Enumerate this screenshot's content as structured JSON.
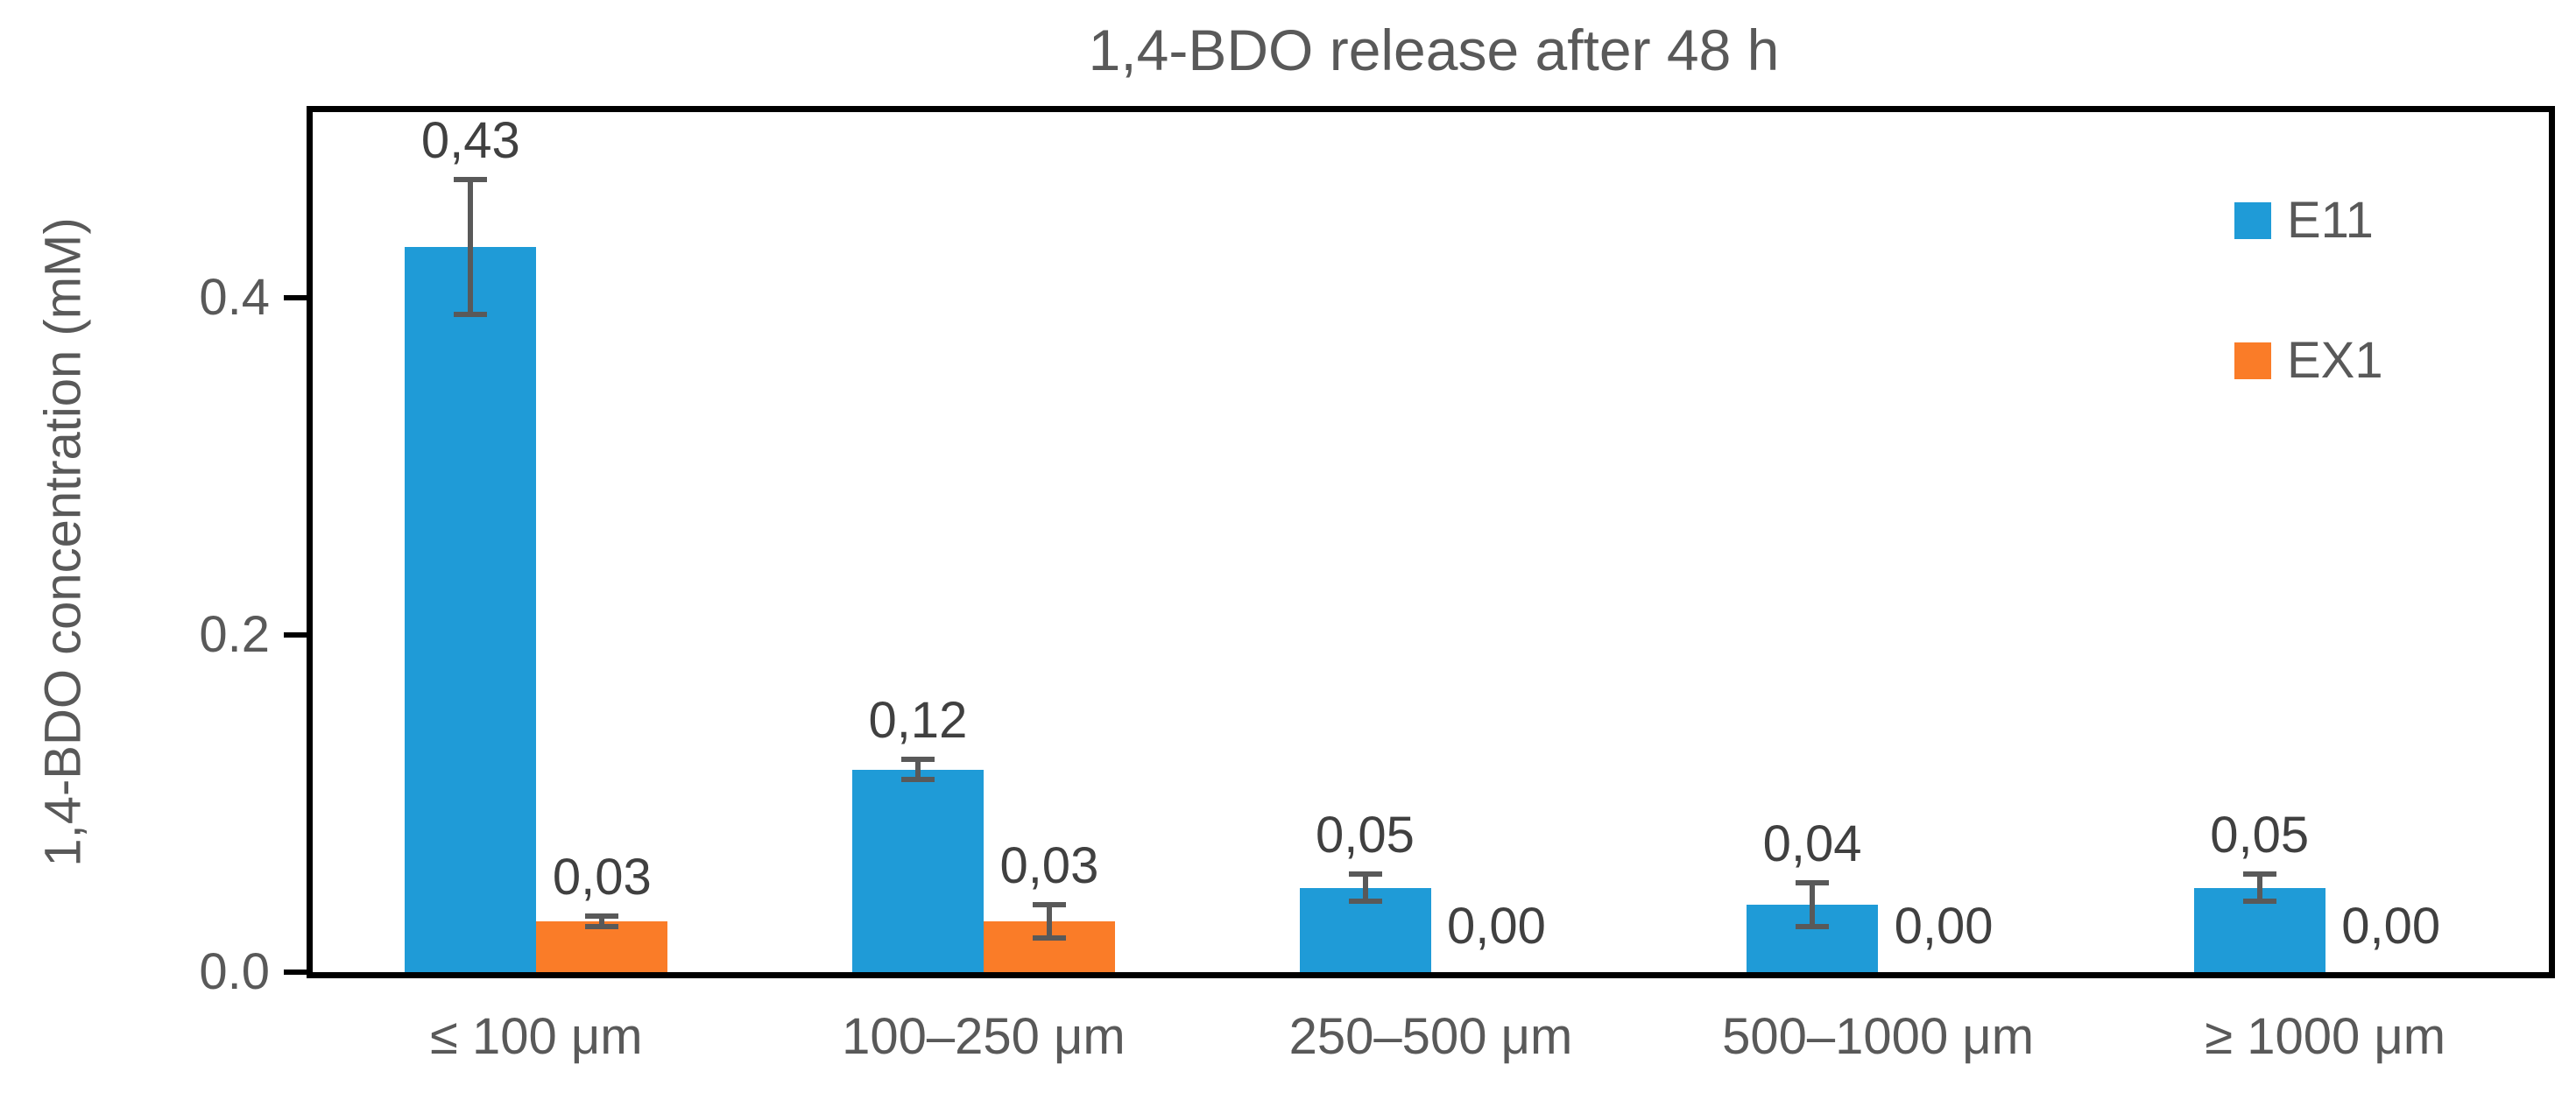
{
  "chart_data": {
    "type": "bar",
    "title": "1,4-BDO release after 48 h",
    "ylabel": "1,4-BDO concentration (mM)",
    "xlabel": "",
    "categories": [
      "≤ 100 μm",
      "100–250 μm",
      "250–500 μm",
      "500–1000 μm",
      "≥ 1000 μm"
    ],
    "series": [
      {
        "name": "E11",
        "color": "#1F9BD7",
        "values": [
          0.43,
          0.12,
          0.05,
          0.04,
          0.05
        ],
        "value_labels": [
          "0,43",
          "0,12",
          "0,05",
          "0,04",
          "0,05"
        ],
        "errors": [
          0.04,
          0.006,
          0.008,
          0.013,
          0.008
        ]
      },
      {
        "name": "EX1",
        "color": "#FA7C28",
        "values": [
          0.03,
          0.03,
          0.0,
          0.0,
          0.0
        ],
        "value_labels": [
          "0,03",
          "0,03",
          "0,00",
          "0,00",
          "0,00"
        ],
        "errors": [
          0.003,
          0.01,
          0,
          0,
          0
        ]
      }
    ],
    "y_ticks": [
      {
        "value": 0.0,
        "label": "0.0"
      },
      {
        "value": 0.2,
        "label": "0.2"
      },
      {
        "value": 0.4,
        "label": "0.4"
      }
    ],
    "ylim": [
      0,
      0.51
    ],
    "grid": false,
    "error_bars": true,
    "legend_position": "inside-top-right"
  },
  "styles": {
    "background": "#FFFFFF",
    "title_color": "#595959",
    "axis_text_color": "#595959",
    "data_label_color": "#404040",
    "error_bar_color": "#595959",
    "axis_line_color": "#000000"
  }
}
